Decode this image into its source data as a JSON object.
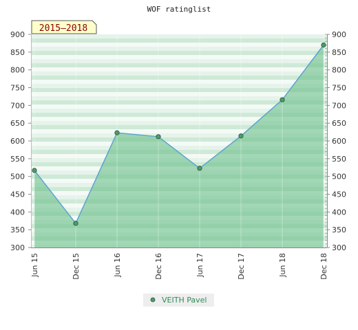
{
  "chart_data": {
    "type": "area",
    "title": "WOF ratinglist",
    "period_label": "2015–2018",
    "categories": [
      "Jun 15",
      "Dec 15",
      "Jun 16",
      "Dec 16",
      "Jun 17",
      "Dec 17",
      "Jun 18",
      "Dec 18"
    ],
    "series": [
      {
        "name": "VEITH Pavel",
        "values": [
          517,
          368,
          623,
          612,
          523,
          614,
          716,
          870
        ]
      }
    ],
    "ylim": [
      300,
      900
    ],
    "yticks": [
      300,
      350,
      400,
      450,
      500,
      550,
      600,
      650,
      700,
      750,
      800,
      850,
      900
    ],
    "ylabel": "",
    "xlabel": "",
    "y_axis_sides": "left-and-right",
    "legend_position": "bottom-center",
    "colors": {
      "line": "#5ba3d0",
      "area_fill": "#6abf8a",
      "marker_fill": "#4a9d6a",
      "badge_bg": "#ffffcc",
      "badge_text": "#8b0000",
      "legend_bg": "#eeeeee",
      "legend_text": "#2e8b57"
    }
  }
}
